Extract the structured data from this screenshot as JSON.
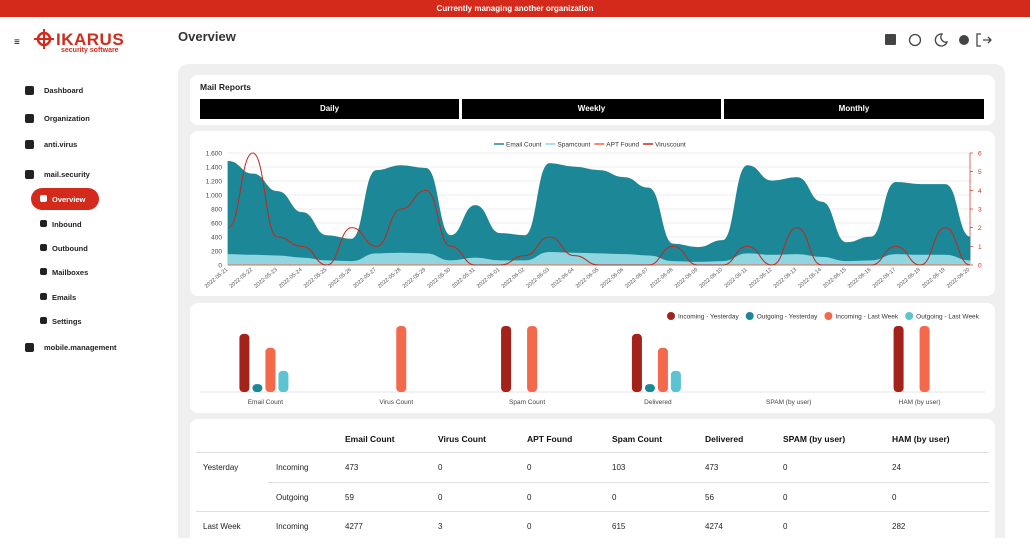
{
  "banner": "Currently managing another organization",
  "logo": {
    "name": "IKARUS",
    "tagline": "security software"
  },
  "header": {
    "title": "Overview"
  },
  "nav": [
    "Dashboard",
    "Organization",
    "anti.virus",
    "mail.security",
    "Overview",
    "Inbound",
    "Outbound",
    "Mailboxes",
    "Emails",
    "Settings",
    "mobile.management"
  ],
  "reports": {
    "title": "Mail Reports",
    "tabs": [
      "Daily",
      "Weekly",
      "Monthly"
    ]
  },
  "chart_data": [
    {
      "type": "area",
      "categories": [
        "2022-05-21",
        "2022-05-22",
        "2022-05-23",
        "2022-05-24",
        "2022-05-25",
        "2022-05-26",
        "2022-05-27",
        "2022-05-28",
        "2022-05-29",
        "2022-05-30",
        "2022-05-31",
        "2022-06-01",
        "2022-06-02",
        "2022-06-03",
        "2022-06-04",
        "2022-06-05",
        "2022-06-06",
        "2022-06-07",
        "2022-06-08",
        "2022-06-09",
        "2022-06-10",
        "2022-06-11",
        "2022-06-12",
        "2022-06-13",
        "2022-06-14",
        "2022-06-15",
        "2022-06-16",
        "2022-06-17",
        "2022-06-18",
        "2022-06-19",
        "2022-06-20"
      ],
      "series": [
        {
          "name": "Email Count",
          "color": "#1b8797",
          "mark": "area",
          "values": [
            1480,
            1300,
            1050,
            750,
            420,
            370,
            1350,
            1420,
            1380,
            420,
            850,
            450,
            420,
            1450,
            1400,
            1350,
            1250,
            1100,
            300,
            250,
            350,
            1420,
            1200,
            1250,
            900,
            320,
            400,
            1180,
            1150,
            1150,
            400
          ]
        },
        {
          "name": "Spamcount",
          "color": "#8fd6e0",
          "mark": "area",
          "values": [
            150,
            140,
            130,
            100,
            60,
            50,
            160,
            170,
            160,
            60,
            100,
            60,
            60,
            180,
            170,
            160,
            150,
            130,
            50,
            40,
            50,
            160,
            140,
            150,
            110,
            50,
            60,
            150,
            140,
            140,
            60
          ]
        },
        {
          "name": "APT Found",
          "color": "#f4663f",
          "mark": "line",
          "axis": "y2",
          "values": [
            0,
            0,
            0,
            0,
            0,
            0,
            0,
            0,
            0,
            0,
            0,
            0,
            0,
            0,
            0,
            0,
            0,
            0,
            0,
            0,
            0,
            0,
            0,
            0,
            0,
            0,
            0,
            0,
            0,
            0,
            0
          ]
        },
        {
          "name": "Viruscount",
          "color": "#c1281c",
          "mark": "line",
          "axis": "y2",
          "values": [
            2,
            6,
            1.5,
            1,
            0,
            2,
            1,
            3,
            4,
            1,
            0,
            0,
            0.5,
            1.5,
            0.5,
            0,
            0,
            0,
            1,
            0,
            0,
            1,
            0,
            2,
            0,
            0,
            0,
            1,
            0,
            2,
            0
          ]
        }
      ],
      "ylim": [
        0,
        1600
      ],
      "yticks": [
        0,
        200,
        400,
        600,
        800,
        {
          "value": 1000,
          "label": "1.000"
        },
        {
          "value": 1200,
          "label": "1.200"
        },
        {
          "value": 1400,
          "label": "1.400"
        },
        {
          "value": 1600,
          "label": "1.600"
        }
      ],
      "y2lim": [
        0,
        6
      ],
      "y2ticks": [
        0,
        1,
        2,
        3,
        4,
        5,
        6
      ],
      "grid": true,
      "legend": "top"
    },
    {
      "type": "bar",
      "categories": [
        "Email Count",
        "Virus Count",
        "Spam Count",
        "Delivered",
        "SPAM (by user)",
        "HAM (by user)"
      ],
      "series": [
        {
          "name": "Incoming - Yesterday",
          "color": "#a3221a",
          "values": [
            88,
            0,
            100,
            88,
            0,
            100
          ]
        },
        {
          "name": "Outgoing - Yesterday",
          "color": "#1b8797",
          "values": [
            12,
            0,
            0,
            12,
            0,
            0
          ]
        },
        {
          "name": "Incoming - Last Week",
          "color": "#f4684c",
          "values": [
            67,
            100,
            100,
            67,
            0,
            100
          ]
        },
        {
          "name": "Outgoing - Last Week",
          "color": "#5cc3d1",
          "values": [
            32,
            0,
            0,
            32,
            0,
            0
          ]
        }
      ],
      "ylim": [
        0,
        100
      ],
      "legend": "top-right"
    }
  ],
  "table": {
    "columns": [
      "Email Count",
      "Virus Count",
      "APT Found",
      "Spam Count",
      "Delivered",
      "SPAM (by user)",
      "HAM (by user)"
    ],
    "groups": [
      {
        "label": "Yesterday",
        "rows": [
          {
            "label": "Incoming",
            "cells": [
              473,
              0,
              0,
              103,
              473,
              0,
              24
            ]
          },
          {
            "label": "Outgoing",
            "cells": [
              59,
              0,
              0,
              0,
              56,
              0,
              0
            ]
          }
        ]
      },
      {
        "label": "Last Week",
        "rows": [
          {
            "label": "Incoming",
            "cells": [
              4277,
              3,
              0,
              615,
              4274,
              0,
              282
            ]
          }
        ]
      }
    ]
  }
}
